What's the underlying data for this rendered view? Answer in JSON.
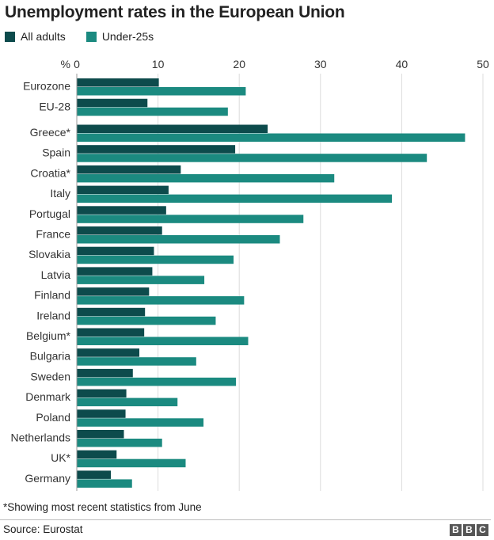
{
  "header": {
    "title": "Unemployment rates in the European Union"
  },
  "legend": [
    {
      "label": "All adults",
      "color": "#0d4b4c"
    },
    {
      "label": "Under-25s",
      "color": "#1b8a80"
    }
  ],
  "footer": {
    "note": "*Showing most recent statistics from June",
    "source": "Source: Eurostat",
    "logo": [
      "B",
      "B",
      "C"
    ]
  },
  "chart_data": {
    "type": "bar",
    "orientation": "horizontal",
    "unit_label": "%",
    "xlim": [
      0,
      50
    ],
    "x_ticks": [
      0,
      10,
      20,
      30,
      40,
      50
    ],
    "grid": true,
    "legend_placement": "top-left",
    "categories": [
      "Eurozone",
      "EU-28",
      "Greece*",
      "Spain",
      "Croatia*",
      "Italy",
      "Portugal",
      "France",
      "Slovakia",
      "Latvia",
      "Finland",
      "Ireland",
      "Belgium*",
      "Bulgaria",
      "Sweden",
      "Denmark",
      "Poland",
      "Netherlands",
      "UK*",
      "Germany"
    ],
    "series": [
      {
        "name": "All adults",
        "color": "#0d4b4c",
        "values": [
          10.1,
          8.7,
          23.5,
          19.5,
          12.8,
          11.3,
          11.0,
          10.5,
          9.5,
          9.3,
          8.9,
          8.4,
          8.3,
          7.7,
          6.9,
          6.1,
          6.0,
          5.8,
          4.9,
          4.2
        ]
      },
      {
        "name": "Under-25s",
        "color": "#1b8a80",
        "values": [
          20.8,
          18.6,
          47.8,
          43.1,
          31.7,
          38.8,
          27.9,
          25.0,
          19.3,
          15.7,
          20.6,
          17.1,
          21.1,
          14.7,
          19.6,
          12.4,
          15.6,
          10.5,
          13.4,
          6.8
        ]
      }
    ]
  }
}
